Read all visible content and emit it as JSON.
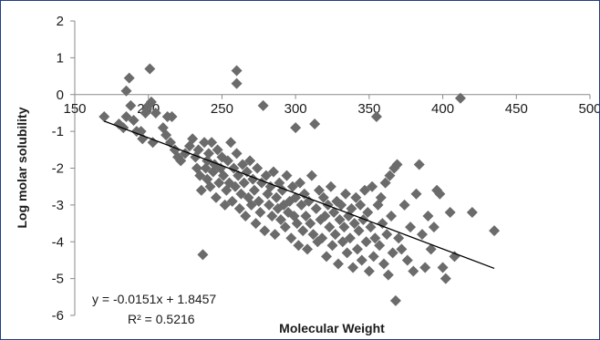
{
  "chart_data": {
    "type": "scatter",
    "title": "",
    "xlabel": "Molecular Weight",
    "ylabel": "Log molar solubility",
    "xlim": [
      150,
      500
    ],
    "ylim": [
      -6,
      2
    ],
    "xticks": [
      150,
      200,
      250,
      300,
      350,
      400,
      450,
      500
    ],
    "yticks": [
      -6,
      -5,
      -4,
      -3,
      -2,
      -1,
      0,
      1,
      2
    ],
    "x_axis_crosses_at_y": 0,
    "grid": false,
    "legend": "none",
    "marker": "diamond",
    "colors": {
      "marker": "#6b6b6b",
      "trendline": "#000000",
      "axis": "#8a8a8a",
      "border": "#1f3f86"
    },
    "trendline": {
      "type": "linear",
      "slope": -0.0151,
      "intercept": 1.8457,
      "x_range": [
        170,
        435
      ],
      "equation_label": "y = -0.0151x + 1.8457",
      "r2_label": "R² = 0.5216"
    },
    "series": [
      {
        "points": [
          [
            170,
            -0.6
          ],
          [
            180,
            -0.8
          ],
          [
            183,
            -0.9
          ],
          [
            185,
            -0.6
          ],
          [
            185,
            0.1
          ],
          [
            187,
            0.45
          ],
          [
            188,
            -0.3
          ],
          [
            190,
            -0.7
          ],
          [
            192,
            -1.0
          ],
          [
            195,
            -1.0
          ],
          [
            196,
            -1.2
          ],
          [
            198,
            -0.5
          ],
          [
            199,
            -0.4
          ],
          [
            200,
            -0.3
          ],
          [
            201,
            0.7
          ],
          [
            202,
            -0.2
          ],
          [
            203,
            -1.3
          ],
          [
            205,
            -0.5
          ],
          [
            210,
            -0.9
          ],
          [
            212,
            -1.1
          ],
          [
            213,
            -0.6
          ],
          [
            215,
            -1.3
          ],
          [
            216,
            -0.6
          ],
          [
            218,
            -1.5
          ],
          [
            220,
            -1.7
          ],
          [
            222,
            -1.8
          ],
          [
            225,
            -1.6
          ],
          [
            228,
            -1.4
          ],
          [
            230,
            -1.2
          ],
          [
            232,
            -1.7
          ],
          [
            233,
            -2.0
          ],
          [
            234,
            -1.5
          ],
          [
            235,
            -2.2
          ],
          [
            236,
            -2.6
          ],
          [
            237,
            -4.35
          ],
          [
            238,
            -1.3
          ],
          [
            239,
            -2.0
          ],
          [
            240,
            -1.8
          ],
          [
            240,
            -2.3
          ],
          [
            241,
            -1.6
          ],
          [
            242,
            -2.5
          ],
          [
            243,
            -1.3
          ],
          [
            244,
            -2.1
          ],
          [
            245,
            -1.9
          ],
          [
            246,
            -2.8
          ],
          [
            247,
            -1.5
          ],
          [
            248,
            -2.4
          ],
          [
            249,
            -2.0
          ],
          [
            250,
            -1.7
          ],
          [
            251,
            -2.2
          ],
          [
            252,
            -3.0
          ],
          [
            253,
            -2.6
          ],
          [
            254,
            -1.8
          ],
          [
            255,
            -2.4
          ],
          [
            256,
            -1.3
          ],
          [
            257,
            -2.9
          ],
          [
            258,
            -2.0
          ],
          [
            259,
            -2.5
          ],
          [
            260,
            -1.6
          ],
          [
            260,
            0.65
          ],
          [
            260,
            0.3
          ],
          [
            261,
            -2.2
          ],
          [
            262,
            -3.1
          ],
          [
            263,
            -2.7
          ],
          [
            264,
            -1.9
          ],
          [
            265,
            -2.4
          ],
          [
            266,
            -3.3
          ],
          [
            267,
            -2.1
          ],
          [
            268,
            -2.8
          ],
          [
            269,
            -1.8
          ],
          [
            270,
            -3.0
          ],
          [
            271,
            -2.3
          ],
          [
            272,
            -2.6
          ],
          [
            273,
            -3.5
          ],
          [
            274,
            -2.0
          ],
          [
            275,
            -2.9
          ],
          [
            276,
            -3.2
          ],
          [
            277,
            -2.4
          ],
          [
            278,
            -0.3
          ],
          [
            279,
            -3.7
          ],
          [
            280,
            -2.2
          ],
          [
            281,
            -2.7
          ],
          [
            282,
            -3.0
          ],
          [
            283,
            -2.5
          ],
          [
            284,
            -3.3
          ],
          [
            285,
            -2.1
          ],
          [
            286,
            -3.8
          ],
          [
            287,
            -2.8
          ],
          [
            288,
            -3.1
          ],
          [
            289,
            -2.4
          ],
          [
            290,
            -3.4
          ],
          [
            291,
            -2.6
          ],
          [
            292,
            -3.0
          ],
          [
            293,
            -3.6
          ],
          [
            294,
            -2.2
          ],
          [
            295,
            -3.2
          ],
          [
            296,
            -2.9
          ],
          [
            297,
            -3.9
          ],
          [
            298,
            -2.5
          ],
          [
            299,
            -3.3
          ],
          [
            300,
            -0.9
          ],
          [
            300,
            -2.8
          ],
          [
            301,
            -3.5
          ],
          [
            302,
            -4.1
          ],
          [
            303,
            -2.4
          ],
          [
            304,
            -3.0
          ],
          [
            305,
            -3.7
          ],
          [
            306,
            -2.7
          ],
          [
            307,
            -3.3
          ],
          [
            308,
            -4.2
          ],
          [
            309,
            -2.9
          ],
          [
            310,
            -3.5
          ],
          [
            311,
            -2.2
          ],
          [
            312,
            -3.8
          ],
          [
            313,
            -0.8
          ],
          [
            314,
            -3.1
          ],
          [
            315,
            -4.0
          ],
          [
            316,
            -2.6
          ],
          [
            317,
            -3.4
          ],
          [
            318,
            -3.9
          ],
          [
            319,
            -2.8
          ],
          [
            320,
            -3.3
          ],
          [
            321,
            -4.4
          ],
          [
            322,
            -3.0
          ],
          [
            323,
            -3.6
          ],
          [
            324,
            -2.5
          ],
          [
            325,
            -4.1
          ],
          [
            326,
            -3.2
          ],
          [
            327,
            -3.8
          ],
          [
            328,
            -2.9
          ],
          [
            329,
            -4.6
          ],
          [
            330,
            -3.4
          ],
          [
            331,
            -3.0
          ],
          [
            332,
            -4.0
          ],
          [
            333,
            -3.6
          ],
          [
            334,
            -2.7
          ],
          [
            335,
            -4.3
          ],
          [
            336,
            -3.3
          ],
          [
            337,
            -3.9
          ],
          [
            338,
            -3.1
          ],
          [
            339,
            -4.7
          ],
          [
            340,
            -3.5
          ],
          [
            341,
            -2.8
          ],
          [
            342,
            -4.2
          ],
          [
            343,
            -3.7
          ],
          [
            344,
            -3.0
          ],
          [
            345,
            -4.5
          ],
          [
            346,
            -3.4
          ],
          [
            347,
            -2.6
          ],
          [
            348,
            -4.0
          ],
          [
            349,
            -3.2
          ],
          [
            350,
            -4.8
          ],
          [
            351,
            -3.6
          ],
          [
            352,
            -2.5
          ],
          [
            353,
            -4.4
          ],
          [
            354,
            -3.9
          ],
          [
            355,
            -0.6
          ],
          [
            356,
            -3.0
          ],
          [
            357,
            -4.1
          ],
          [
            358,
            -2.8
          ],
          [
            359,
            -3.5
          ],
          [
            360,
            -4.6
          ],
          [
            361,
            -2.4
          ],
          [
            362,
            -3.8
          ],
          [
            363,
            -4.9
          ],
          [
            364,
            -2.2
          ],
          [
            365,
            -3.3
          ],
          [
            366,
            -4.3
          ],
          [
            367,
            -2.0
          ],
          [
            368,
            -5.6
          ],
          [
            369,
            -1.9
          ],
          [
            370,
            -3.9
          ],
          [
            372,
            -4.2
          ],
          [
            374,
            -3.0
          ],
          [
            376,
            -4.5
          ],
          [
            378,
            -3.6
          ],
          [
            380,
            -4.8
          ],
          [
            382,
            -2.7
          ],
          [
            384,
            -1.9
          ],
          [
            386,
            -3.8
          ],
          [
            388,
            -4.7
          ],
          [
            390,
            -3.3
          ],
          [
            392,
            -4.2
          ],
          [
            394,
            -3.6
          ],
          [
            396,
            -2.6
          ],
          [
            398,
            -2.7
          ],
          [
            400,
            -4.7
          ],
          [
            402,
            -5.0
          ],
          [
            405,
            -3.2
          ],
          [
            408,
            -4.4
          ],
          [
            412,
            -0.1
          ],
          [
            420,
            -3.2
          ],
          [
            435,
            -3.7
          ]
        ]
      }
    ]
  }
}
